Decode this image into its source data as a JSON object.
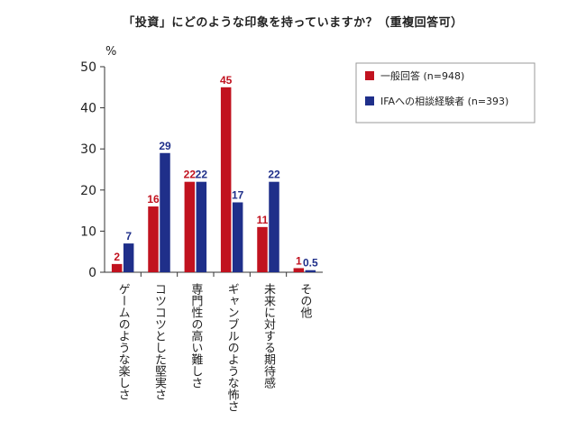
{
  "chart_data": {
    "type": "bar",
    "title": "「投資」にどのような印象を持っていますか？（重複回答可）",
    "ylabel": "%",
    "ylim": [
      0,
      50
    ],
    "yticks": [
      0,
      10,
      20,
      30,
      40,
      50
    ],
    "grid": false,
    "legend_position": "top-right",
    "categories": [
      "ゲームのような楽しさ",
      "コツコツとした堅実さ",
      "専門性の高い難しさ",
      "ギャンブルのような怖さ",
      "未来に対する期待感",
      "その他"
    ],
    "series": [
      {
        "name": "一般回答 (n=948)",
        "color": "#c1121f",
        "values": [
          2,
          16,
          22,
          45,
          11,
          1
        ],
        "labels": [
          "2",
          "16",
          "22",
          "45",
          "11",
          "1"
        ]
      },
      {
        "name": "IFAへの相談経験者 (n=393)",
        "color": "#1f2f8a",
        "values": [
          7,
          29,
          22,
          17,
          22,
          0.5
        ],
        "labels": [
          "7",
          "29",
          "22",
          "17",
          "22",
          "0.5"
        ]
      }
    ]
  }
}
